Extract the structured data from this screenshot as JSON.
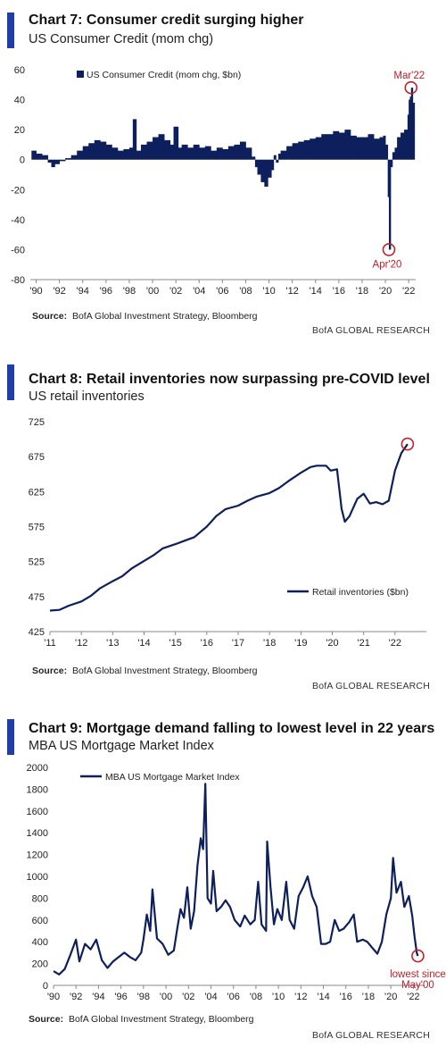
{
  "brand_color": "#1f3ea8",
  "series_color": "#0d1f5c",
  "annotation_color": "#c0202a",
  "charts": [
    {
      "title": "Chart 7: Consumer credit surging higher",
      "subtitle": "US Consumer Credit (mom chg)",
      "source_label": "Source:",
      "source_text": "BofA Global Investment Strategy, Bloomberg",
      "brand": "BofA GLOBAL RESEARCH"
    },
    {
      "title": "Chart 8: Retail inventories now surpassing pre-COVID level",
      "subtitle": "US retail inventories",
      "source_label": "Source:",
      "source_text": "BofA Global Investment Strategy, Bloomberg",
      "brand": "BofA GLOBAL RESEARCH"
    },
    {
      "title": "Chart 9: Mortgage demand falling to lowest level in 22 years",
      "subtitle": "MBA US Mortgage Market Index",
      "source_label": "Source:",
      "source_text": "BofA Global Investment Strategy, Bloomberg",
      "brand": "BofA GLOBAL RESEARCH"
    }
  ],
  "chart_data": [
    {
      "type": "bar",
      "title": "Chart 7: Consumer credit surging higher",
      "subtitle": "US Consumer Credit (mom chg)",
      "legend": "US Consumer Credit (mom chg, $bn)",
      "legend_position": "top-left",
      "ylim": [
        -80,
        60
      ],
      "yticks": [
        -80,
        -60,
        -40,
        -20,
        0,
        20,
        40,
        60
      ],
      "xlim": [
        1989.5,
        2022.6
      ],
      "xticks": [
        "'90",
        "'92",
        "'94",
        "'96",
        "'98",
        "'00",
        "'02",
        "'04",
        "'06",
        "'08",
        "'10",
        "'12",
        "'14",
        "'16",
        "'18",
        "'20",
        "'22"
      ],
      "grid": false,
      "annotations": [
        {
          "text": "Mar'22",
          "x": 2022.2,
          "y": 48
        },
        {
          "text": "Apr'20",
          "x": 2020.3,
          "y": -60
        }
      ],
      "series": [
        {
          "name": "US Consumer Credit (mom chg, $bn)",
          "points": [
            [
              1989.6,
              6
            ],
            [
              1990.0,
              4
            ],
            [
              1990.5,
              3
            ],
            [
              1991.0,
              -2
            ],
            [
              1991.3,
              -5
            ],
            [
              1991.6,
              -3
            ],
            [
              1992.0,
              -1
            ],
            [
              1992.5,
              1
            ],
            [
              1993.0,
              3
            ],
            [
              1993.5,
              6
            ],
            [
              1994.0,
              9
            ],
            [
              1994.5,
              11
            ],
            [
              1995.0,
              13
            ],
            [
              1995.5,
              12
            ],
            [
              1996.0,
              10
            ],
            [
              1996.5,
              8
            ],
            [
              1997.0,
              6
            ],
            [
              1997.5,
              7
            ],
            [
              1998.0,
              8
            ],
            [
              1998.3,
              27
            ],
            [
              1998.6,
              6
            ],
            [
              1999.0,
              10
            ],
            [
              1999.5,
              12
            ],
            [
              2000.0,
              15
            ],
            [
              2000.5,
              17
            ],
            [
              2001.0,
              13
            ],
            [
              2001.5,
              10
            ],
            [
              2001.8,
              22
            ],
            [
              2002.2,
              8
            ],
            [
              2002.5,
              10
            ],
            [
              2003.0,
              8
            ],
            [
              2003.5,
              10
            ],
            [
              2004.0,
              8
            ],
            [
              2004.5,
              9
            ],
            [
              2005.0,
              6
            ],
            [
              2005.5,
              8
            ],
            [
              2006.0,
              7
            ],
            [
              2006.5,
              9
            ],
            [
              2007.0,
              10
            ],
            [
              2007.5,
              12
            ],
            [
              2008.0,
              8
            ],
            [
              2008.5,
              2
            ],
            [
              2008.8,
              -5
            ],
            [
              2009.0,
              -10
            ],
            [
              2009.3,
              -15
            ],
            [
              2009.6,
              -18
            ],
            [
              2009.9,
              -12
            ],
            [
              2010.2,
              -7
            ],
            [
              2010.4,
              3
            ],
            [
              2010.6,
              -2
            ],
            [
              2010.8,
              4
            ],
            [
              2011.0,
              6
            ],
            [
              2011.5,
              9
            ],
            [
              2012.0,
              11
            ],
            [
              2012.5,
              12
            ],
            [
              2013.0,
              13
            ],
            [
              2013.5,
              14
            ],
            [
              2014.0,
              15
            ],
            [
              2014.5,
              17
            ],
            [
              2015.0,
              17
            ],
            [
              2015.5,
              19
            ],
            [
              2016.0,
              18
            ],
            [
              2016.5,
              20
            ],
            [
              2017.0,
              16
            ],
            [
              2017.5,
              15
            ],
            [
              2018.0,
              15
            ],
            [
              2018.5,
              17
            ],
            [
              2019.0,
              14
            ],
            [
              2019.5,
              15
            ],
            [
              2019.8,
              16
            ],
            [
              2020.0,
              10
            ],
            [
              2020.2,
              -25
            ],
            [
              2020.3,
              -60
            ],
            [
              2020.45,
              -5
            ],
            [
              2020.6,
              5
            ],
            [
              2020.8,
              8
            ],
            [
              2021.0,
              15
            ],
            [
              2021.3,
              18
            ],
            [
              2021.6,
              20
            ],
            [
              2021.9,
              30
            ],
            [
              2022.0,
              40
            ],
            [
              2022.1,
              42
            ],
            [
              2022.2,
              48
            ],
            [
              2022.35,
              38
            ]
          ]
        }
      ]
    },
    {
      "type": "line",
      "title": "Chart 8: Retail inventories now surpassing pre-COVID level",
      "subtitle": "US retail inventories",
      "legend": "Retail inventories ($bn)",
      "legend_position": "bottom-right",
      "ylim": [
        425,
        725
      ],
      "yticks": [
        425,
        475,
        525,
        575,
        625,
        675,
        725
      ],
      "xlim": [
        2011.0,
        2023.0
      ],
      "xticks": [
        "'11",
        "'12",
        "'13",
        "'14",
        "'15",
        "'16",
        "'17",
        "'18",
        "'19",
        "'20",
        "'21",
        "'22"
      ],
      "grid": false,
      "annotations": [
        {
          "text": "",
          "x": 2022.4,
          "y": 693
        }
      ],
      "series": [
        {
          "name": "Retail inventories ($bn)",
          "points": [
            [
              2011.0,
              455
            ],
            [
              2011.3,
              456
            ],
            [
              2011.6,
              462
            ],
            [
              2012.0,
              468
            ],
            [
              2012.3,
              476
            ],
            [
              2012.6,
              487
            ],
            [
              2013.0,
              497
            ],
            [
              2013.3,
              504
            ],
            [
              2013.6,
              515
            ],
            [
              2014.0,
              526
            ],
            [
              2014.3,
              534
            ],
            [
              2014.6,
              544
            ],
            [
              2015.0,
              550
            ],
            [
              2015.3,
              555
            ],
            [
              2015.6,
              560
            ],
            [
              2016.0,
              575
            ],
            [
              2016.3,
              590
            ],
            [
              2016.6,
              600
            ],
            [
              2017.0,
              605
            ],
            [
              2017.3,
              612
            ],
            [
              2017.6,
              618
            ],
            [
              2018.0,
              623
            ],
            [
              2018.3,
              630
            ],
            [
              2018.6,
              640
            ],
            [
              2019.0,
              652
            ],
            [
              2019.3,
              660
            ],
            [
              2019.5,
              662
            ],
            [
              2019.8,
              662
            ],
            [
              2019.95,
              655
            ],
            [
              2020.15,
              657
            ],
            [
              2020.3,
              600
            ],
            [
              2020.4,
              582
            ],
            [
              2020.55,
              590
            ],
            [
              2020.8,
              615
            ],
            [
              2021.0,
              622
            ],
            [
              2021.2,
              608
            ],
            [
              2021.4,
              610
            ],
            [
              2021.6,
              607
            ],
            [
              2021.8,
              612
            ],
            [
              2022.0,
              655
            ],
            [
              2022.2,
              680
            ],
            [
              2022.4,
              693
            ]
          ]
        }
      ]
    },
    {
      "type": "line",
      "title": "Chart 9: Mortgage demand falling to lowest level in 22 years",
      "subtitle": "MBA US Mortgage Market Index",
      "legend": "MBA US Mortgage Market Index",
      "legend_position": "top-left",
      "ylim": [
        0,
        2000
      ],
      "yticks": [
        0,
        200,
        400,
        600,
        800,
        1000,
        1200,
        1400,
        1600,
        1800,
        2000
      ],
      "xlim": [
        1990.0,
        2023.0
      ],
      "xticks": [
        "'90",
        "'92",
        "'94",
        "'96",
        "'98",
        "'00",
        "'02",
        "'04",
        "'06",
        "'08",
        "'10",
        "'12",
        "'14",
        "'16",
        "'18",
        "'20",
        "'22"
      ],
      "grid": false,
      "annotations": [
        {
          "text": "lowest since May'00",
          "x": 2022.4,
          "y": 270
        }
      ],
      "series": [
        {
          "name": "MBA US Mortgage Market Index",
          "points": [
            [
              1990.0,
              130
            ],
            [
              1990.5,
              100
            ],
            [
              1991.0,
              150
            ],
            [
              1991.5,
              280
            ],
            [
              1992.0,
              420
            ],
            [
              1992.3,
              220
            ],
            [
              1992.8,
              380
            ],
            [
              1993.3,
              330
            ],
            [
              1993.8,
              420
            ],
            [
              1994.3,
              230
            ],
            [
              1994.8,
              160
            ],
            [
              1995.3,
              220
            ],
            [
              1995.8,
              260
            ],
            [
              1996.3,
              300
            ],
            [
              1996.8,
              260
            ],
            [
              1997.3,
              230
            ],
            [
              1997.8,
              300
            ],
            [
              1998.0,
              420
            ],
            [
              1998.3,
              650
            ],
            [
              1998.6,
              500
            ],
            [
              1998.8,
              880
            ],
            [
              1999.2,
              430
            ],
            [
              1999.7,
              380
            ],
            [
              2000.2,
              280
            ],
            [
              2000.7,
              320
            ],
            [
              2001.0,
              520
            ],
            [
              2001.3,
              700
            ],
            [
              2001.6,
              620
            ],
            [
              2001.9,
              900
            ],
            [
              2002.2,
              520
            ],
            [
              2002.5,
              680
            ],
            [
              2002.8,
              1100
            ],
            [
              2003.1,
              1350
            ],
            [
              2003.3,
              1250
            ],
            [
              2003.5,
              1850
            ],
            [
              2003.7,
              800
            ],
            [
              2004.0,
              750
            ],
            [
              2004.2,
              1050
            ],
            [
              2004.5,
              680
            ],
            [
              2004.9,
              720
            ],
            [
              2005.3,
              780
            ],
            [
              2005.7,
              720
            ],
            [
              2006.1,
              600
            ],
            [
              2006.6,
              540
            ],
            [
              2007.0,
              640
            ],
            [
              2007.5,
              560
            ],
            [
              2007.9,
              600
            ],
            [
              2008.2,
              950
            ],
            [
              2008.5,
              560
            ],
            [
              2008.9,
              500
            ],
            [
              2009.0,
              1320
            ],
            [
              2009.3,
              900
            ],
            [
              2009.6,
              560
            ],
            [
              2009.9,
              700
            ],
            [
              2010.3,
              600
            ],
            [
              2010.7,
              950
            ],
            [
              2011.0,
              600
            ],
            [
              2011.4,
              520
            ],
            [
              2011.8,
              820
            ],
            [
              2012.2,
              900
            ],
            [
              2012.6,
              1000
            ],
            [
              2013.0,
              820
            ],
            [
              2013.4,
              720
            ],
            [
              2013.8,
              380
            ],
            [
              2014.2,
              380
            ],
            [
              2014.6,
              400
            ],
            [
              2015.0,
              600
            ],
            [
              2015.4,
              500
            ],
            [
              2015.8,
              520
            ],
            [
              2016.3,
              580
            ],
            [
              2016.7,
              650
            ],
            [
              2017.0,
              400
            ],
            [
              2017.5,
              420
            ],
            [
              2017.9,
              400
            ],
            [
              2018.3,
              350
            ],
            [
              2018.8,
              290
            ],
            [
              2019.2,
              400
            ],
            [
              2019.6,
              650
            ],
            [
              2020.0,
              800
            ],
            [
              2020.2,
              1170
            ],
            [
              2020.5,
              850
            ],
            [
              2020.9,
              950
            ],
            [
              2021.2,
              720
            ],
            [
              2021.6,
              820
            ],
            [
              2021.9,
              640
            ],
            [
              2022.1,
              450
            ],
            [
              2022.3,
              300
            ],
            [
              2022.4,
              270
            ]
          ]
        }
      ]
    }
  ]
}
